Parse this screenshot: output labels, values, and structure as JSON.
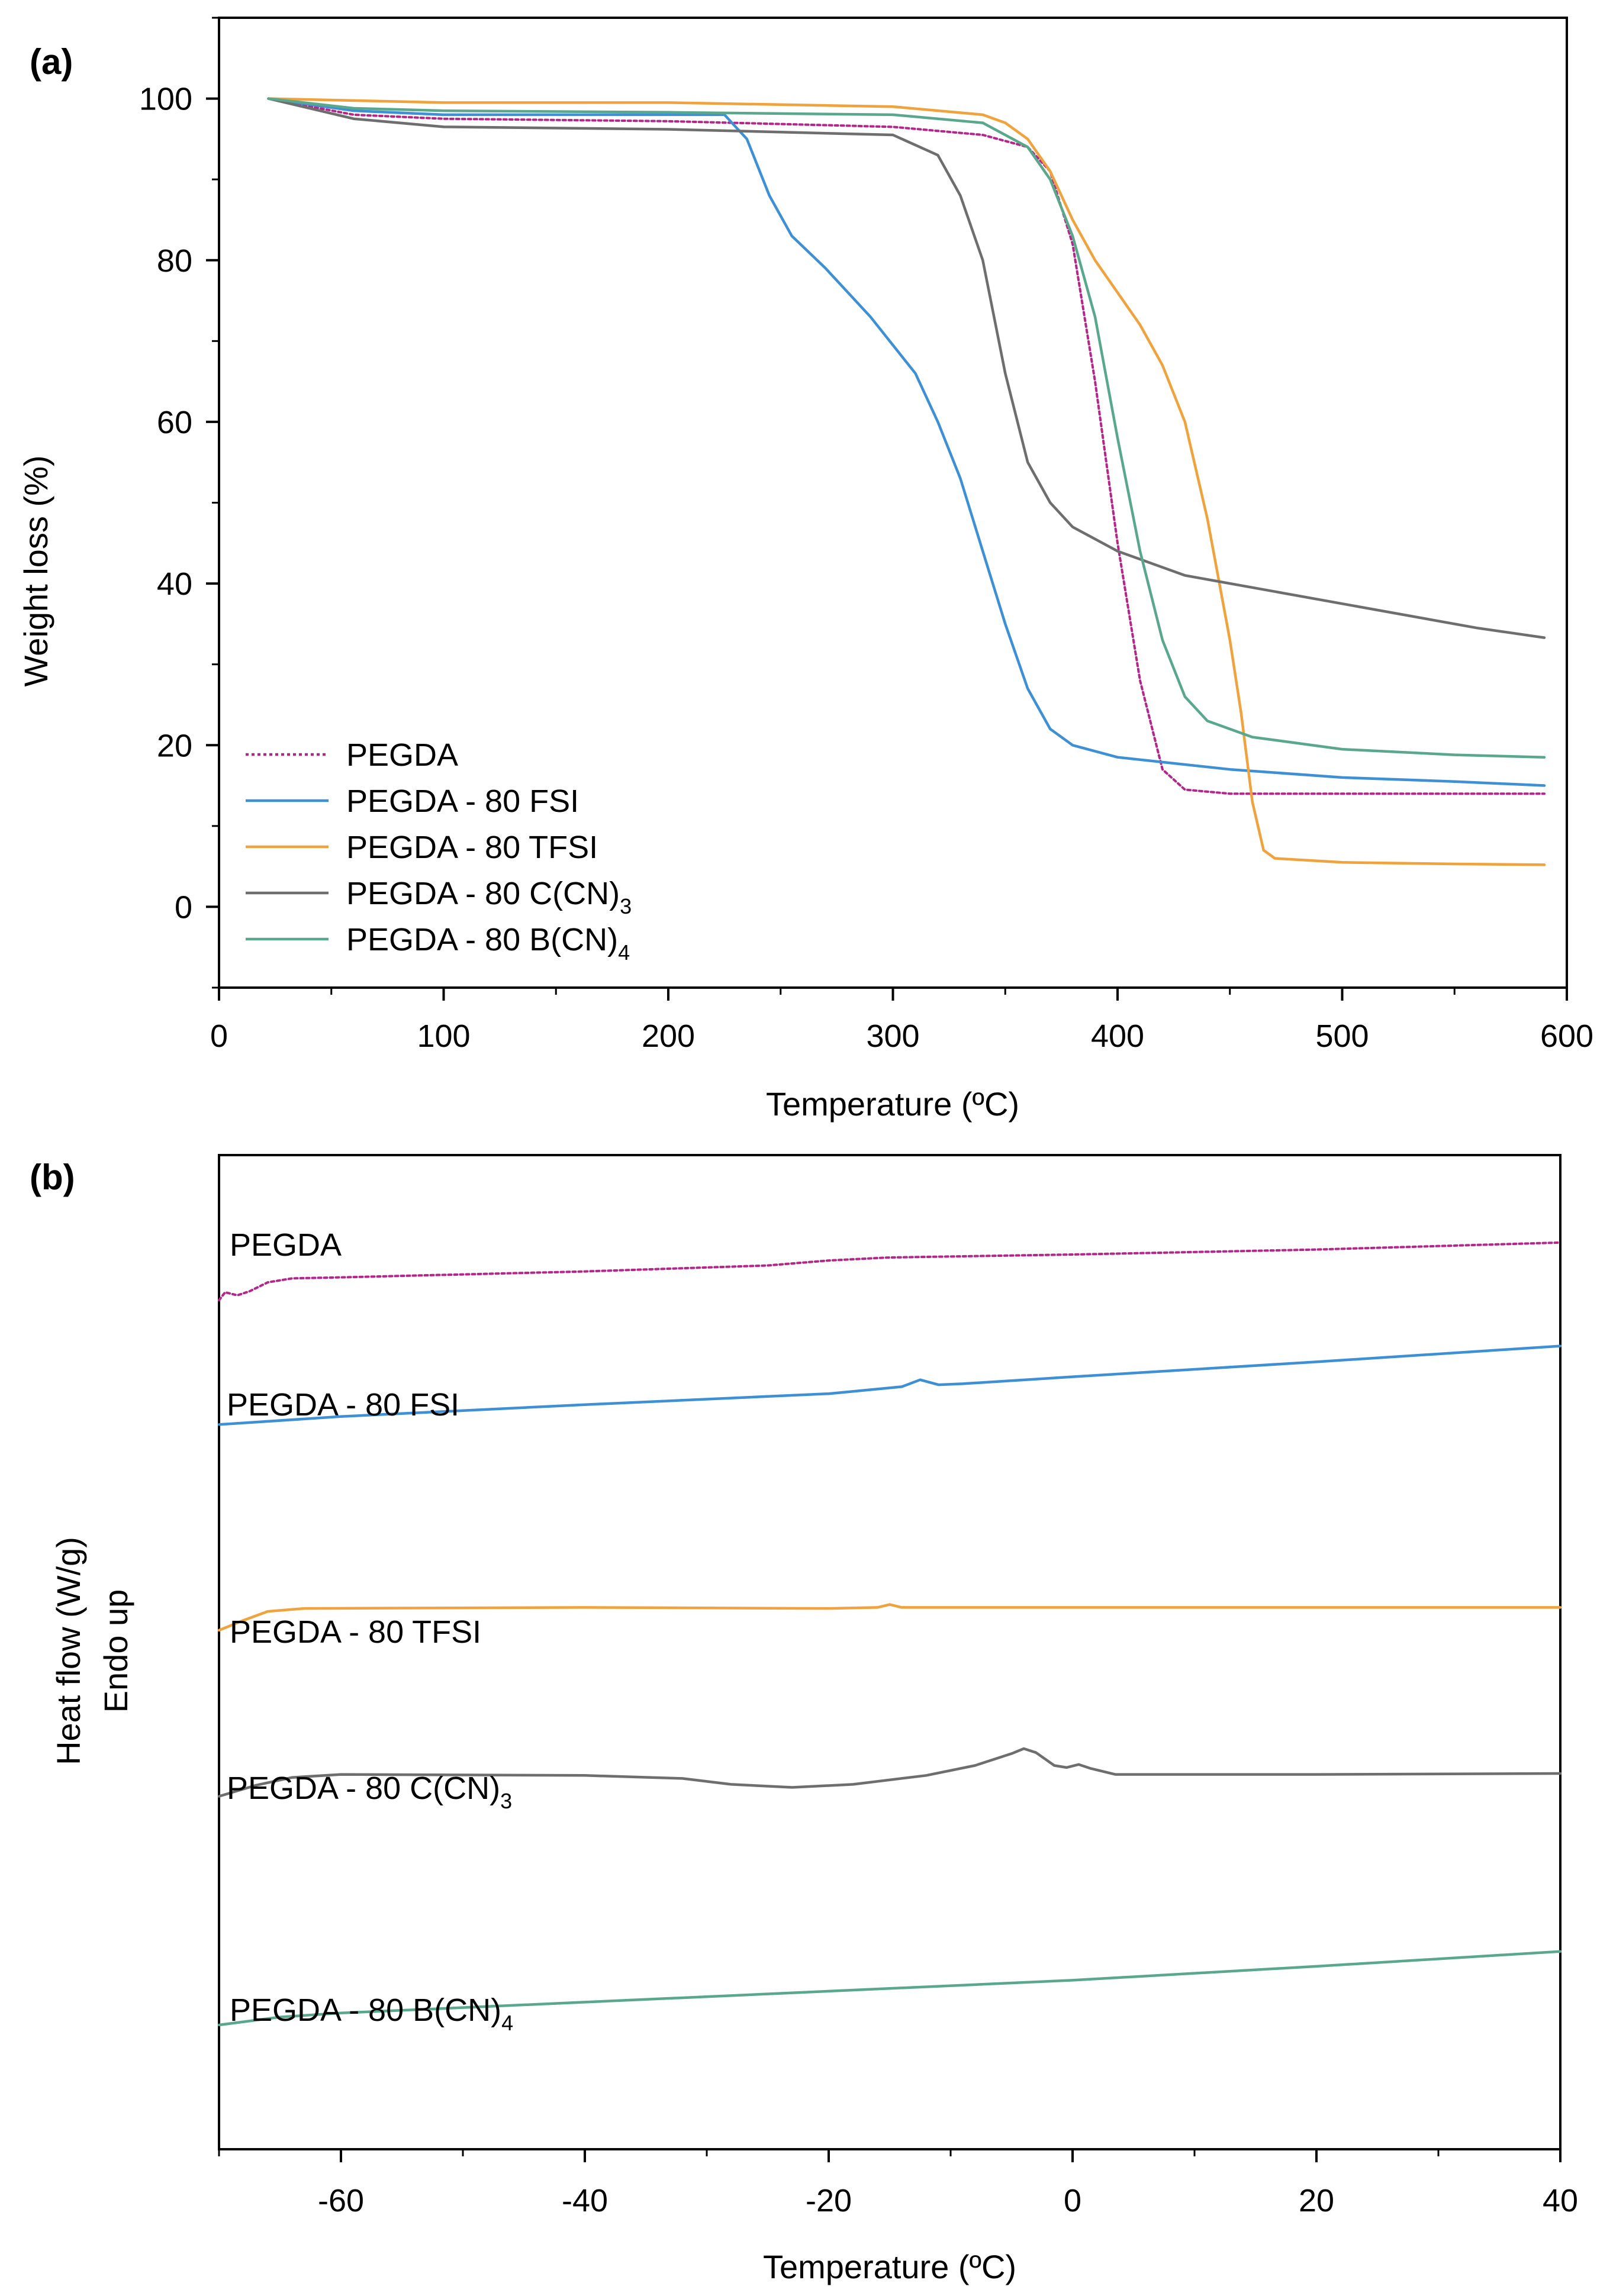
{
  "chart_data": [
    {
      "type": "line",
      "panel_label": "(a)",
      "xlabel": "Temperature (ºC)",
      "ylabel": "Weight loss (%)",
      "xlim": [
        0,
        600
      ],
      "ylim": [
        -10,
        110
      ],
      "xticks": [
        0,
        100,
        200,
        300,
        400,
        500,
        600
      ],
      "yticks": [
        0,
        20,
        40,
        60,
        80,
        100
      ],
      "legend_position": "bottom-left",
      "series": [
        {
          "name": "PEGDA",
          "label_base": "PEGDA",
          "label_sub": "",
          "color": "#b5258a",
          "dash": "dotted",
          "points": [
            [
              22,
              100
            ],
            [
              60,
              98
            ],
            [
              100,
              97.5
            ],
            [
              200,
              97.2
            ],
            [
              300,
              96.5
            ],
            [
              340,
              95.5
            ],
            [
              360,
              94
            ],
            [
              370,
              91
            ],
            [
              380,
              82
            ],
            [
              390,
              65
            ],
            [
              400,
              45
            ],
            [
              410,
              28
            ],
            [
              420,
              17
            ],
            [
              430,
              14.5
            ],
            [
              450,
              14
            ],
            [
              500,
              14
            ],
            [
              550,
              14
            ],
            [
              590,
              14
            ]
          ]
        },
        {
          "name": "PEGDA - 80 FSI",
          "label_base": "PEGDA - 80 FSI",
          "label_sub": "",
          "color": "#3d8fd6",
          "dash": "solid",
          "points": [
            [
              22,
              100
            ],
            [
              60,
              98.5
            ],
            [
              100,
              98
            ],
            [
              200,
              98
            ],
            [
              225,
              98
            ],
            [
              235,
              95
            ],
            [
              245,
              88
            ],
            [
              255,
              83
            ],
            [
              270,
              79
            ],
            [
              290,
              73
            ],
            [
              310,
              66
            ],
            [
              320,
              60
            ],
            [
              330,
              53
            ],
            [
              340,
              44
            ],
            [
              350,
              35
            ],
            [
              360,
              27
            ],
            [
              370,
              22
            ],
            [
              380,
              20
            ],
            [
              400,
              18.5
            ],
            [
              450,
              17
            ],
            [
              500,
              16
            ],
            [
              550,
              15.5
            ],
            [
              590,
              15
            ]
          ]
        },
        {
          "name": "PEGDA - 80 TFSI",
          "label_base": "PEGDA - 80 TFSI",
          "label_sub": "",
          "color": "#f0a23c",
          "dash": "solid",
          "points": [
            [
              22,
              100
            ],
            [
              100,
              99.5
            ],
            [
              200,
              99.5
            ],
            [
              300,
              99
            ],
            [
              340,
              98
            ],
            [
              350,
              97
            ],
            [
              360,
              95
            ],
            [
              370,
              91
            ],
            [
              380,
              85
            ],
            [
              390,
              80
            ],
            [
              400,
              76
            ],
            [
              410,
              72
            ],
            [
              420,
              67
            ],
            [
              430,
              60
            ],
            [
              440,
              48
            ],
            [
              450,
              33
            ],
            [
              455,
              24
            ],
            [
              460,
              13
            ],
            [
              465,
              7
            ],
            [
              470,
              6
            ],
            [
              500,
              5.5
            ],
            [
              550,
              5.3
            ],
            [
              590,
              5.2
            ]
          ]
        },
        {
          "name": "PEGDA - 80 C(CN)3",
          "label_base": "PEGDA - 80 C(CN)",
          "label_sub": "3",
          "color": "#6e6e6e",
          "dash": "solid",
          "points": [
            [
              22,
              100
            ],
            [
              60,
              97.5
            ],
            [
              100,
              96.5
            ],
            [
              200,
              96.2
            ],
            [
              300,
              95.5
            ],
            [
              320,
              93
            ],
            [
              330,
              88
            ],
            [
              340,
              80
            ],
            [
              345,
              73
            ],
            [
              350,
              66
            ],
            [
              360,
              55
            ],
            [
              370,
              50
            ],
            [
              380,
              47
            ],
            [
              400,
              44
            ],
            [
              430,
              41
            ],
            [
              470,
              39
            ],
            [
              520,
              36.5
            ],
            [
              560,
              34.5
            ],
            [
              590,
              33.3
            ]
          ]
        },
        {
          "name": "PEGDA - 80 B(CN)4",
          "label_base": "PEGDA - 80 B(CN)",
          "label_sub": "4",
          "color": "#5aa88c",
          "dash": "solid",
          "points": [
            [
              22,
              100
            ],
            [
              60,
              98.8
            ],
            [
              100,
              98.5
            ],
            [
              200,
              98.3
            ],
            [
              300,
              98
            ],
            [
              340,
              97
            ],
            [
              360,
              94
            ],
            [
              370,
              90
            ],
            [
              380,
              83
            ],
            [
              390,
              73
            ],
            [
              400,
              58
            ],
            [
              410,
              44
            ],
            [
              420,
              33
            ],
            [
              430,
              26
            ],
            [
              440,
              23
            ],
            [
              460,
              21
            ],
            [
              500,
              19.5
            ],
            [
              550,
              18.8
            ],
            [
              590,
              18.5
            ]
          ]
        }
      ]
    },
    {
      "type": "line",
      "panel_label": "(b)",
      "xlabel": "Temperature (ºC)",
      "ylabel_line1": "Heat flow (W/g)",
      "ylabel_line2": "Endo up",
      "xlim": [
        -70,
        40
      ],
      "ylim": [
        0,
        100
      ],
      "xticks": [
        -60,
        -40,
        -20,
        0,
        20,
        40
      ],
      "y_axis_numbers_shown": false,
      "series": [
        {
          "name": "PEGDA",
          "label_base": "PEGDA",
          "label_sub": "",
          "color": "#b5258a",
          "dash": "dotted",
          "points": [
            [
              -70,
              85.4
            ],
            [
              -69.5,
              86.2
            ],
            [
              -68.5,
              85.9
            ],
            [
              -67.5,
              86.3
            ],
            [
              -66,
              87.2
            ],
            [
              -64,
              87.6
            ],
            [
              -60,
              87.7
            ],
            [
              -40,
              88.3
            ],
            [
              -25,
              88.9
            ],
            [
              -20,
              89.4
            ],
            [
              -15,
              89.7
            ],
            [
              0,
              90
            ],
            [
              20,
              90.5
            ],
            [
              40,
              91.2
            ]
          ]
        },
        {
          "name": "PEGDA - 80 FSI",
          "label_base": "PEGDA - 80 FSI",
          "label_sub": "",
          "color": "#3d8fd6",
          "dash": "solid",
          "points": [
            [
              -70,
              72.9
            ],
            [
              -60,
              73.7
            ],
            [
              -40,
              74.9
            ],
            [
              -20,
              76
            ],
            [
              -14,
              76.7
            ],
            [
              -12.5,
              77.4
            ],
            [
              -11,
              76.9
            ],
            [
              -9,
              77
            ],
            [
              0,
              77.7
            ],
            [
              20,
              79.2
            ],
            [
              40,
              80.8
            ]
          ]
        },
        {
          "name": "PEGDA - 80 TFSI",
          "label_base": "PEGDA - 80 TFSI",
          "label_sub": "",
          "color": "#f0a23c",
          "dash": "solid",
          "points": [
            [
              -70,
              52.2
            ],
            [
              -68,
              53.2
            ],
            [
              -66,
              54.1
            ],
            [
              -63,
              54.4
            ],
            [
              -40,
              54.5
            ],
            [
              -20,
              54.4
            ],
            [
              -16,
              54.5
            ],
            [
              -15,
              54.8
            ],
            [
              -14,
              54.5
            ],
            [
              0,
              54.5
            ],
            [
              20,
              54.5
            ],
            [
              40,
              54.5
            ]
          ]
        },
        {
          "name": "PEGDA - 80 C(CN)3",
          "label_base": "PEGDA - 80 C(CN)",
          "label_sub": "3",
          "color": "#6e6e6e",
          "dash": "solid",
          "points": [
            [
              -70,
              35.5
            ],
            [
              -67,
              36.6
            ],
            [
              -64,
              37.4
            ],
            [
              -60,
              37.7
            ],
            [
              -40,
              37.6
            ],
            [
              -32,
              37.3
            ],
            [
              -28,
              36.7
            ],
            [
              -23,
              36.4
            ],
            [
              -18,
              36.7
            ],
            [
              -12,
              37.6
            ],
            [
              -8,
              38.6
            ],
            [
              -5,
              39.8
            ],
            [
              -4,
              40.3
            ],
            [
              -3,
              39.9
            ],
            [
              -1.5,
              38.6
            ],
            [
              -0.5,
              38.4
            ],
            [
              0.5,
              38.7
            ],
            [
              1.5,
              38.3
            ],
            [
              3.5,
              37.7
            ],
            [
              20,
              37.7
            ],
            [
              40,
              37.8
            ]
          ]
        },
        {
          "name": "PEGDA - 80 B(CN)4",
          "label_base": "PEGDA - 80 B(CN)",
          "label_sub": "4",
          "color": "#5aa88c",
          "dash": "solid",
          "points": [
            [
              -70,
              12.5
            ],
            [
              -65,
              13.3
            ],
            [
              -60,
              13.7
            ],
            [
              -40,
              14.8
            ],
            [
              -20,
              15.9
            ],
            [
              0,
              17
            ],
            [
              20,
              18.4
            ],
            [
              40,
              19.9
            ]
          ]
        }
      ]
    }
  ]
}
